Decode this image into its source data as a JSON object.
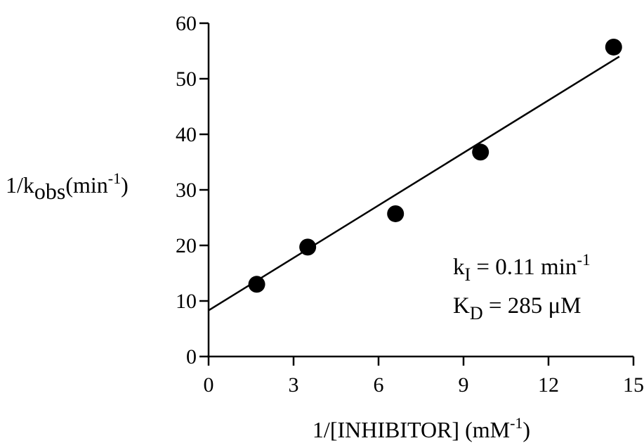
{
  "chart_data": {
    "type": "scatter",
    "title": "",
    "xlabel": "1/[INHIBITOR] (mM",
    "xlabel_sup": "-1",
    "xlabel_close": ")",
    "ylabel_prefix": "1/k",
    "ylabel_sub": "obs",
    "ylabel_mid": "(min",
    "ylabel_sup": "-1",
    "ylabel_close": ")",
    "xlim": [
      0,
      15
    ],
    "ylim": [
      0,
      60
    ],
    "xticks": [
      "0",
      "3",
      "6",
      "9",
      "12",
      "15"
    ],
    "yticks": [
      "0",
      "10",
      "20",
      "30",
      "40",
      "50",
      "60"
    ],
    "grid": false,
    "legend": "none",
    "series": [
      {
        "points": [
          {
            "x": 1.7,
            "y": 13.0
          },
          {
            "x": 3.5,
            "y": 19.7
          },
          {
            "x": 6.6,
            "y": 25.7
          },
          {
            "x": 9.6,
            "y": 36.8
          },
          {
            "x": 14.3,
            "y": 55.7
          }
        ],
        "color": "#000000"
      }
    ],
    "fit_line": {
      "x": [
        0,
        14.5
      ],
      "y": [
        8.3,
        54.0
      ],
      "color": "#000000"
    },
    "annotations": {
      "ki": {
        "base": "k",
        "sub": "I",
        "text": " = 0.11 min",
        "sup": "-1"
      },
      "kd": {
        "base": "K",
        "sub": "D",
        "text": " = 285 μM"
      }
    }
  }
}
